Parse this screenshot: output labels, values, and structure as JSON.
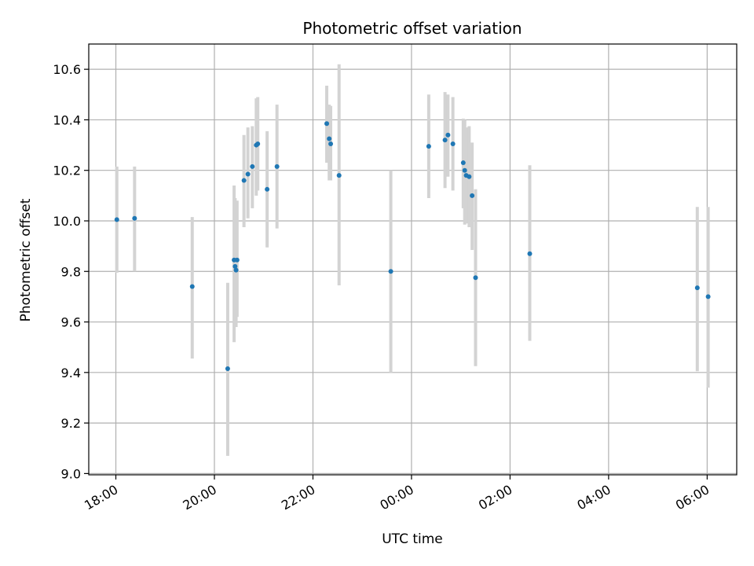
{
  "chart_data": {
    "type": "scatter",
    "title": "Photometric offset variation",
    "xlabel": "UTC time",
    "ylabel": "Photometric offset",
    "x_unit": "hours since 18:00 UTC",
    "xlim": [
      -0.55,
      12.6
    ],
    "ylim": [
      8.995,
      10.7
    ],
    "x_ticks": [
      {
        "value": 0,
        "label": "18:00"
      },
      {
        "value": 2,
        "label": "20:00"
      },
      {
        "value": 4,
        "label": "22:00"
      },
      {
        "value": 6,
        "label": "00:00"
      },
      {
        "value": 8,
        "label": "02:00"
      },
      {
        "value": 10,
        "label": "04:00"
      },
      {
        "value": 12,
        "label": "06:00"
      }
    ],
    "y_ticks": [
      {
        "value": 9.0,
        "label": "9.0"
      },
      {
        "value": 9.2,
        "label": "9.2"
      },
      {
        "value": 9.4,
        "label": "9.4"
      },
      {
        "value": 9.6,
        "label": "9.6"
      },
      {
        "value": 9.8,
        "label": "9.8"
      },
      {
        "value": 10.0,
        "label": "10.0"
      },
      {
        "value": 10.2,
        "label": "10.2"
      },
      {
        "value": 10.4,
        "label": "10.4"
      },
      {
        "value": 10.6,
        "label": "10.6"
      }
    ],
    "grid": true,
    "colors": {
      "points": "#1f77b4",
      "errorbars": "#d3d3d3",
      "grid": "#b0b0b0"
    },
    "points": [
      {
        "x": 0.02,
        "y": 10.005,
        "lo": 9.795,
        "hi": 10.215
      },
      {
        "x": 0.38,
        "y": 10.01,
        "lo": 9.8,
        "hi": 10.215
      },
      {
        "x": 1.55,
        "y": 9.74,
        "lo": 9.455,
        "hi": 10.015
      },
      {
        "x": 2.27,
        "y": 9.415,
        "lo": 9.07,
        "hi": 9.755
      },
      {
        "x": 2.4,
        "y": 9.845,
        "lo": 9.52,
        "hi": 10.14
      },
      {
        "x": 2.42,
        "y": 9.82,
        "lo": 9.58,
        "hi": 10.09
      },
      {
        "x": 2.44,
        "y": 9.805,
        "lo": 9.58,
        "hi": 10.07
      },
      {
        "x": 2.46,
        "y": 9.845,
        "lo": 9.62,
        "hi": 10.08
      },
      {
        "x": 2.6,
        "y": 10.16,
        "lo": 9.975,
        "hi": 10.34
      },
      {
        "x": 2.68,
        "y": 10.185,
        "lo": 10.01,
        "hi": 10.37
      },
      {
        "x": 2.77,
        "y": 10.215,
        "lo": 10.05,
        "hi": 10.375
      },
      {
        "x": 2.85,
        "y": 10.3,
        "lo": 10.1,
        "hi": 10.485
      },
      {
        "x": 2.88,
        "y": 10.305,
        "lo": 10.12,
        "hi": 10.49
      },
      {
        "x": 3.07,
        "y": 10.125,
        "lo": 9.895,
        "hi": 10.355
      },
      {
        "x": 3.27,
        "y": 10.215,
        "lo": 9.97,
        "hi": 10.46
      },
      {
        "x": 4.28,
        "y": 10.385,
        "lo": 10.23,
        "hi": 10.535
      },
      {
        "x": 4.33,
        "y": 10.325,
        "lo": 10.16,
        "hi": 10.46
      },
      {
        "x": 4.36,
        "y": 10.305,
        "lo": 10.16,
        "hi": 10.455
      },
      {
        "x": 4.53,
        "y": 10.18,
        "lo": 9.745,
        "hi": 10.62
      },
      {
        "x": 5.58,
        "y": 9.8,
        "lo": 9.4,
        "hi": 10.2
      },
      {
        "x": 6.35,
        "y": 10.295,
        "lo": 10.09,
        "hi": 10.5
      },
      {
        "x": 6.68,
        "y": 10.32,
        "lo": 10.13,
        "hi": 10.51
      },
      {
        "x": 6.74,
        "y": 10.34,
        "lo": 10.175,
        "hi": 10.5
      },
      {
        "x": 6.84,
        "y": 10.305,
        "lo": 10.12,
        "hi": 10.49
      },
      {
        "x": 7.05,
        "y": 10.23,
        "lo": 10.05,
        "hi": 10.405
      },
      {
        "x": 7.08,
        "y": 10.2,
        "lo": 9.985,
        "hi": 10.4
      },
      {
        "x": 7.11,
        "y": 10.18,
        "lo": 9.99,
        "hi": 10.37
      },
      {
        "x": 7.17,
        "y": 10.175,
        "lo": 9.975,
        "hi": 10.375
      },
      {
        "x": 7.23,
        "y": 10.1,
        "lo": 9.885,
        "hi": 10.31
      },
      {
        "x": 7.3,
        "y": 9.775,
        "lo": 9.425,
        "hi": 10.125
      },
      {
        "x": 8.4,
        "y": 9.87,
        "lo": 9.525,
        "hi": 10.22
      },
      {
        "x": 11.8,
        "y": 9.735,
        "lo": 9.405,
        "hi": 10.055
      },
      {
        "x": 12.02,
        "y": 9.7,
        "lo": 9.34,
        "hi": 10.055
      }
    ]
  }
}
